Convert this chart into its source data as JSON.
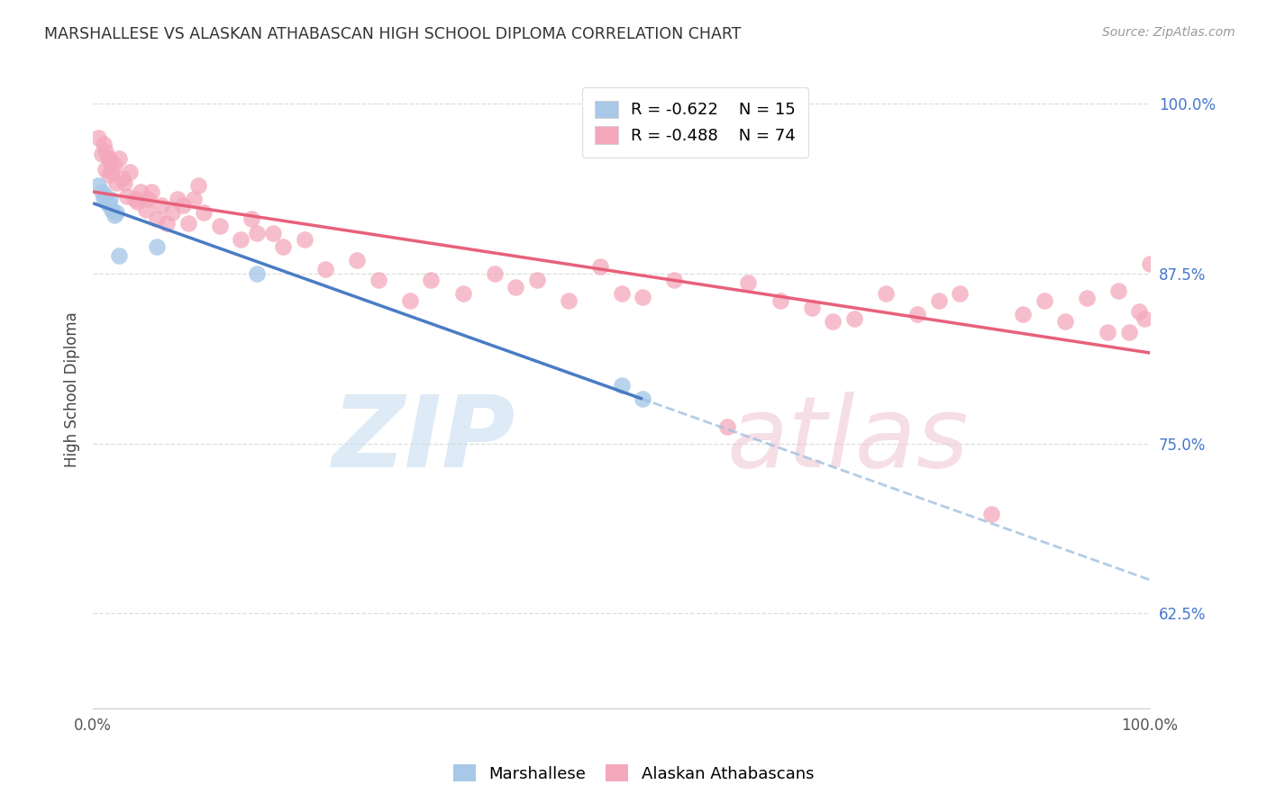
{
  "title": "MARSHALLESE VS ALASKAN ATHABASCAN HIGH SCHOOL DIPLOMA CORRELATION CHART",
  "source": "Source: ZipAtlas.com",
  "ylabel": "High School Diploma",
  "legend_blue_label": "Marshallese",
  "legend_pink_label": "Alaskan Athabascans",
  "legend_blue_R": "-0.622",
  "legend_blue_N": "15",
  "legend_pink_R": "-0.488",
  "legend_pink_N": "74",
  "blue_color": "#A8C8E8",
  "pink_color": "#F4A8BC",
  "blue_line_color": "#4A7CC4",
  "pink_line_color": "#E8607A",
  "blue_dash_color": "#A0C0E0",
  "blue_scatter_x": [
    0.005,
    0.008,
    0.01,
    0.012,
    0.013,
    0.015,
    0.016,
    0.018,
    0.02,
    0.022,
    0.025,
    0.06,
    0.155,
    0.5,
    0.52
  ],
  "blue_scatter_y": [
    0.94,
    0.935,
    0.93,
    0.932,
    0.928,
    0.925,
    0.93,
    0.922,
    0.918,
    0.92,
    0.888,
    0.895,
    0.875,
    0.793,
    0.783
  ],
  "pink_scatter_x": [
    0.005,
    0.008,
    0.01,
    0.012,
    0.012,
    0.015,
    0.015,
    0.016,
    0.018,
    0.02,
    0.022,
    0.025,
    0.028,
    0.03,
    0.032,
    0.035,
    0.04,
    0.042,
    0.045,
    0.05,
    0.052,
    0.055,
    0.06,
    0.065,
    0.07,
    0.075,
    0.08,
    0.085,
    0.09,
    0.095,
    0.1,
    0.105,
    0.12,
    0.14,
    0.15,
    0.155,
    0.17,
    0.18,
    0.2,
    0.22,
    0.25,
    0.27,
    0.3,
    0.32,
    0.35,
    0.38,
    0.4,
    0.42,
    0.45,
    0.48,
    0.5,
    0.52,
    0.55,
    0.6,
    0.62,
    0.65,
    0.68,
    0.7,
    0.72,
    0.75,
    0.78,
    0.8,
    0.82,
    0.85,
    0.88,
    0.9,
    0.92,
    0.94,
    0.96,
    0.97,
    0.98,
    0.99,
    0.995,
    1.0
  ],
  "pink_scatter_y": [
    0.975,
    0.963,
    0.97,
    0.965,
    0.952,
    0.96,
    0.948,
    0.958,
    0.95,
    0.955,
    0.942,
    0.96,
    0.945,
    0.942,
    0.932,
    0.95,
    0.93,
    0.928,
    0.935,
    0.922,
    0.93,
    0.935,
    0.915,
    0.925,
    0.912,
    0.92,
    0.93,
    0.925,
    0.912,
    0.93,
    0.94,
    0.92,
    0.91,
    0.9,
    0.915,
    0.905,
    0.905,
    0.895,
    0.9,
    0.878,
    0.885,
    0.87,
    0.855,
    0.87,
    0.86,
    0.875,
    0.865,
    0.87,
    0.855,
    0.88,
    0.86,
    0.858,
    0.87,
    0.762,
    0.868,
    0.855,
    0.85,
    0.84,
    0.842,
    0.86,
    0.845,
    0.855,
    0.86,
    0.698,
    0.845,
    0.855,
    0.84,
    0.857,
    0.832,
    0.862,
    0.832,
    0.847,
    0.842,
    0.882
  ],
  "xlim": [
    0.0,
    1.0
  ],
  "ylim": [
    0.555,
    1.025
  ],
  "yticks": [
    0.625,
    0.75,
    0.875,
    1.0
  ],
  "ytick_labels": [
    "62.5%",
    "75.0%",
    "87.5%",
    "100.0%"
  ],
  "blue_line_x0": 0.0,
  "blue_line_x_solid_end": 0.52,
  "blue_line_x1": 1.0,
  "figsize": [
    14.06,
    8.92
  ],
  "dpi": 100
}
